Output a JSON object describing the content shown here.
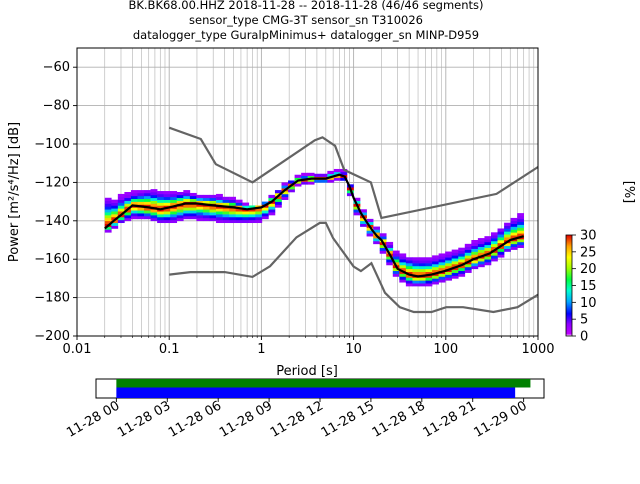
{
  "title_lines": [
    "BK.BK68.00.HHZ   2018-11-28 -- 2018-11-28  (46/46 segments)",
    "sensor_type CMG-3T sensor_sn T310026",
    "datalogger_type GuralpMinimus+ datalogger_sn MINP-D959"
  ],
  "chart_data": {
    "type": "heatmap",
    "xlabel": "Period [s]",
    "ylabel": "Power [m²/s⁴/Hz] [dB]",
    "x_scale": "log",
    "xlim": [
      0.01,
      1000
    ],
    "ylim": [
      -200,
      -50
    ],
    "x_tick_labels": [
      "0.01",
      "0.1",
      "1",
      "10",
      "100",
      "1000"
    ],
    "x_tick_values": [
      0.01,
      0.1,
      1,
      10,
      100,
      1000
    ],
    "y_ticks": [
      -200,
      -180,
      -160,
      -140,
      -120,
      -100,
      -80,
      -60
    ],
    "y_tick_labels": [
      "−200",
      "−180",
      "−160",
      "−140",
      "−120",
      "−100",
      "−80",
      "−60"
    ],
    "grid": true,
    "colorbar": {
      "label": "[%]",
      "range": [
        0,
        30
      ],
      "ticks": [
        0,
        5,
        10,
        15,
        20,
        25,
        30
      ]
    },
    "noise_model_high": {
      "x": [
        0.1,
        0.22,
        0.32,
        0.8,
        3.8,
        4.6,
        6.3,
        7.9,
        15.4,
        20,
        354.8,
        1000
      ],
      "y": [
        -91.5,
        -97.4,
        -110.5,
        -120,
        -98,
        -96.5,
        -101,
        -113.5,
        -120,
        -138.5,
        -126,
        -112
      ]
    },
    "noise_model_low": {
      "x": [
        0.1,
        0.17,
        0.4,
        0.8,
        1.24,
        2.4,
        4.3,
        5,
        6,
        10,
        12,
        15.6,
        21.9,
        31.6,
        45,
        70,
        101,
        154,
        328,
        600,
        1000
      ],
      "y": [
        -168,
        -166.7,
        -166.7,
        -169.2,
        -163.7,
        -148.6,
        -141.1,
        -141.1,
        -149,
        -163.8,
        -166.2,
        -162.1,
        -177.5,
        -185,
        -187.5,
        -187.5,
        -185,
        -185,
        -187.5,
        -185,
        -178.5
      ]
    },
    "mode_curve": {
      "x": [
        0.02,
        0.025,
        0.03,
        0.04,
        0.06,
        0.08,
        0.1,
        0.15,
        0.2,
        0.3,
        0.5,
        0.7,
        1,
        1.3,
        1.8,
        2.5,
        3.5,
        5,
        7,
        8,
        9,
        10,
        12,
        14,
        16,
        18,
        20,
        25,
        30,
        40,
        50,
        70,
        100,
        150,
        200,
        300,
        400,
        500,
        700
      ],
      "y": [
        -144,
        -140,
        -137,
        -132,
        -133,
        -134,
        -133,
        -131,
        -131,
        -132,
        -133,
        -134,
        -133,
        -130,
        -124,
        -119,
        -118,
        -118,
        -116,
        -117,
        -122,
        -128,
        -136,
        -141,
        -145,
        -148,
        -150,
        -158,
        -165,
        -168,
        -169,
        -168,
        -166,
        -163,
        -160,
        -157,
        -153,
        -150,
        -148
      ]
    },
    "spread_upper": [
      -128,
      -130,
      -128,
      -126,
      -124,
      -125,
      -126,
      -125,
      -127,
      -127,
      -129,
      -132,
      -132,
      -127,
      -121,
      -117,
      -116,
      -116,
      -114,
      -115,
      -120,
      -126,
      -133,
      -138,
      -141,
      -144,
      -146,
      -153,
      -158,
      -159,
      -160,
      -160,
      -158,
      -155,
      -152,
      -149,
      -144,
      -140,
      -137
    ],
    "spread_lower": [
      -146,
      -144,
      -141,
      -138,
      -139,
      -141,
      -141,
      -139,
      -139,
      -140,
      -141,
      -141,
      -140,
      -136,
      -128,
      -121,
      -120,
      -120,
      -118,
      -119,
      -125,
      -133,
      -141,
      -146,
      -149,
      -152,
      -155,
      -163,
      -170,
      -173,
      -174,
      -173,
      -171,
      -168,
      -165,
      -162,
      -158,
      -155,
      -153
    ],
    "time_bar": {
      "tick_labels": [
        "11-28 00",
        "11-28 03",
        "11-28 06",
        "11-28 09",
        "11-28 12",
        "11-28 15",
        "11-28 18",
        "11-28 21",
        "11-29 00"
      ],
      "tick_hours": [
        0,
        3,
        6,
        9,
        12,
        15,
        18,
        21,
        24
      ],
      "range_hours": [
        -1.2,
        25.2
      ],
      "data_coverage_hours": [
        0,
        24.4
      ],
      "processed_coverage_hours": [
        0,
        23.5
      ],
      "data_color": "#008000",
      "processed_color": "#0000ff"
    }
  }
}
